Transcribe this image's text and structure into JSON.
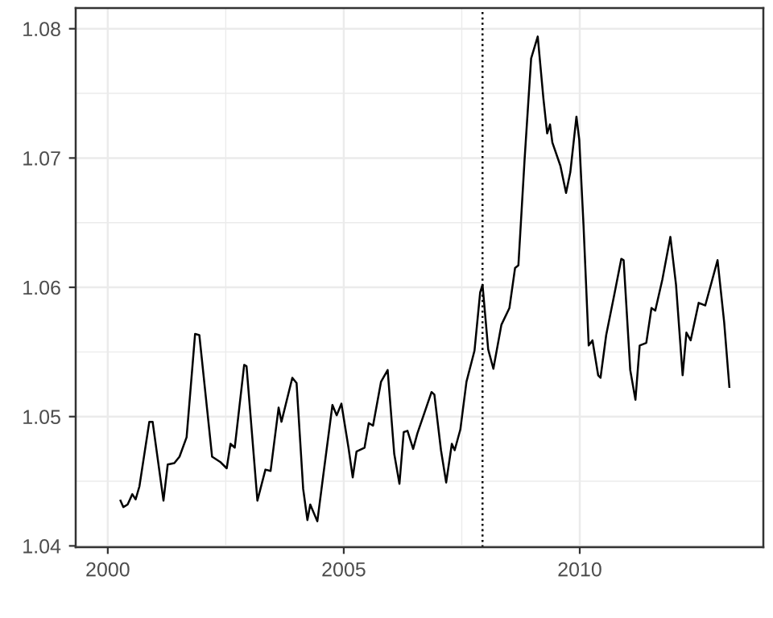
{
  "chart_data": {
    "type": "line",
    "x": [
      2000.27,
      2000.33,
      2000.42,
      2000.52,
      2000.59,
      2000.67,
      2000.88,
      2000.95,
      2001.18,
      2001.27,
      2001.41,
      2001.52,
      2001.67,
      2001.85,
      2001.94,
      2002.21,
      2002.38,
      2002.52,
      2002.6,
      2002.69,
      2002.89,
      2002.94,
      2003.17,
      2003.34,
      2003.45,
      2003.62,
      2003.68,
      2003.91,
      2004.0,
      2004.14,
      2004.23,
      2004.29,
      2004.44,
      2004.56,
      2004.76,
      2004.85,
      2004.95,
      2005.1,
      2005.19,
      2005.27,
      2005.44,
      2005.53,
      2005.62,
      2005.79,
      2005.93,
      2006.07,
      2006.18,
      2006.27,
      2006.35,
      2006.47,
      2006.56,
      2006.86,
      2006.92,
      2007.06,
      2007.17,
      2007.29,
      2007.35,
      2007.47,
      2007.6,
      2007.77,
      2007.89,
      2007.94,
      2008.06,
      2008.17,
      2008.34,
      2008.51,
      2008.63,
      2008.7,
      2008.83,
      2008.97,
      2009.11,
      2009.23,
      2009.31,
      2009.37,
      2009.42,
      2009.59,
      2009.71,
      2009.8,
      2009.93,
      2009.99,
      2010.08,
      2010.19,
      2010.27,
      2010.39,
      2010.44,
      2010.56,
      2010.73,
      2010.88,
      2010.93,
      2011.07,
      2011.18,
      2011.27,
      2011.41,
      2011.52,
      2011.6,
      2011.75,
      2011.92,
      2012.04,
      2012.18,
      2012.26,
      2012.35,
      2012.52,
      2012.66,
      2012.92,
      2013.06,
      2013.17
    ],
    "series": [
      {
        "color": "#000000",
        "values": [
          1.0435,
          1.043,
          1.0432,
          1.044,
          1.0436,
          1.0446,
          1.0496,
          1.0496,
          1.0435,
          1.0463,
          1.0464,
          1.0469,
          1.0484,
          1.0564,
          1.0563,
          1.0469,
          1.0465,
          1.046,
          1.0479,
          1.0476,
          1.054,
          1.0539,
          1.0435,
          1.0459,
          1.0458,
          1.0507,
          1.0496,
          1.053,
          1.0526,
          1.0444,
          1.042,
          1.0432,
          1.0419,
          1.0453,
          1.0509,
          1.0501,
          1.051,
          1.0476,
          1.0453,
          1.0473,
          1.0476,
          1.0495,
          1.0493,
          1.0527,
          1.0536,
          1.0471,
          1.0448,
          1.0488,
          1.0489,
          1.0475,
          1.0487,
          1.0519,
          1.0517,
          1.0474,
          1.0449,
          1.0479,
          1.0474,
          1.049,
          1.0527,
          1.0551,
          1.0596,
          1.0602,
          1.0552,
          1.0537,
          1.0571,
          1.0584,
          1.0615,
          1.0617,
          1.0698,
          1.0777,
          1.0794,
          1.0746,
          1.0719,
          1.0726,
          1.0712,
          1.0694,
          1.0673,
          1.0689,
          1.0732,
          1.0714,
          1.0648,
          1.0555,
          1.0559,
          1.0532,
          1.053,
          1.0563,
          1.0594,
          1.0622,
          1.0621,
          1.0536,
          1.0513,
          1.0555,
          1.0557,
          1.0584,
          1.0582,
          1.0606,
          1.0639,
          1.0602,
          1.0532,
          1.0565,
          1.0559,
          1.0588,
          1.0586,
          1.0621,
          1.0573,
          1.0523
        ]
      }
    ],
    "xlim": [
      1999.32,
      2013.89
    ],
    "ylim": [
      1.0399,
      1.0816
    ],
    "xticks": [
      2000,
      2005,
      2010
    ],
    "yticks": [
      {
        "value": 1.04,
        "label": "1.04"
      },
      {
        "value": 1.05,
        "label": "1.05"
      },
      {
        "value": 1.06,
        "label": "1.06"
      },
      {
        "value": 1.07,
        "label": "1.07"
      },
      {
        "value": 1.08,
        "label": "1.08"
      }
    ],
    "ref_lines": [
      {
        "axis": "x",
        "value": 2007.94,
        "line_style": "dotted",
        "color": "#000000"
      }
    ],
    "grid": true,
    "line_style": "solid",
    "marker": "none"
  }
}
